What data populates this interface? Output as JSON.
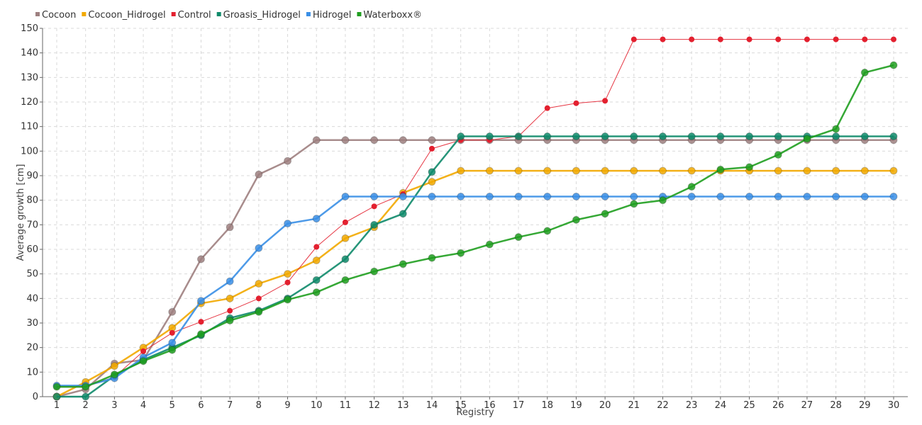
{
  "chart_data": {
    "type": "line",
    "xlabel": "Registry",
    "ylabel": "Average growth [cm]",
    "x": [
      1,
      2,
      3,
      4,
      5,
      6,
      7,
      8,
      9,
      10,
      11,
      12,
      13,
      14,
      15,
      16,
      17,
      18,
      19,
      20,
      21,
      22,
      23,
      24,
      25,
      26,
      27,
      28,
      29,
      30
    ],
    "ylim": [
      0,
      150
    ],
    "yticks": [
      0,
      10,
      20,
      30,
      40,
      50,
      60,
      70,
      80,
      90,
      100,
      110,
      120,
      130,
      140,
      150
    ],
    "grid": true,
    "legend_position": "top-left",
    "series": [
      {
        "name": "Cocoon",
        "color": "#9e8080",
        "marker": "large",
        "values": [
          0,
          3,
          13.5,
          15,
          34.5,
          56,
          69,
          90.5,
          96,
          104.5,
          104.5,
          104.5,
          104.5,
          104.5,
          104.5,
          104.5,
          104.5,
          104.5,
          104.5,
          104.5,
          104.5,
          104.5,
          104.5,
          104.5,
          104.5,
          104.5,
          104.5,
          104.5,
          104.5,
          104.5
        ]
      },
      {
        "name": "Cocoon_Hidrogel",
        "color": "#f2a900",
        "marker": "large",
        "values": [
          0,
          6,
          12.5,
          20,
          28,
          38,
          40,
          46,
          50,
          55.5,
          64.5,
          69,
          83,
          87.5,
          92,
          92,
          92,
          92,
          92,
          92,
          92,
          92,
          92,
          92,
          92,
          92,
          92,
          92,
          92,
          92
        ]
      },
      {
        "name": "Control",
        "color": "#e3202f",
        "marker": "small",
        "values": [
          4,
          4,
          8,
          18.5,
          26,
          30.5,
          35,
          40,
          46.5,
          61,
          71,
          77.5,
          82.5,
          101,
          104.5,
          104.5,
          106,
          117.5,
          119.5,
          120.5,
          145.5,
          145.5,
          145.5,
          145.5,
          145.5,
          145.5,
          145.5,
          145.5,
          145.5,
          145.5
        ]
      },
      {
        "name": "Groasis_Hidrogel",
        "color": "#0e8a6a",
        "marker": "large",
        "values": [
          0,
          0,
          8.5,
          15,
          20,
          25,
          32,
          35,
          40,
          47.5,
          56,
          70,
          74.5,
          91.5,
          106,
          106,
          106,
          106,
          106,
          106,
          106,
          106,
          106,
          106,
          106,
          106,
          106,
          106,
          106,
          106
        ]
      },
      {
        "name": "Hidrogel",
        "color": "#3a8fe6",
        "marker": "large",
        "values": [
          4.5,
          4.5,
          7.5,
          16,
          22,
          39,
          47,
          60.5,
          70.5,
          72.5,
          81.5,
          81.5,
          81.5,
          81.5,
          81.5,
          81.5,
          81.5,
          81.5,
          81.5,
          81.5,
          81.5,
          81.5,
          81.5,
          81.5,
          81.5,
          81.5,
          81.5,
          81.5,
          81.5,
          81.5
        ]
      },
      {
        "name": "Waterboxx®",
        "color": "#1f9e1f",
        "marker": "large",
        "values": [
          4,
          4,
          9,
          14.5,
          19,
          25.5,
          31,
          34.5,
          39.5,
          42.5,
          47.5,
          51,
          54,
          56.5,
          58.5,
          62,
          65,
          67.5,
          72,
          74.5,
          78.5,
          80,
          85.5,
          92.5,
          93.5,
          98.5,
          105,
          109,
          132,
          135
        ]
      }
    ]
  }
}
